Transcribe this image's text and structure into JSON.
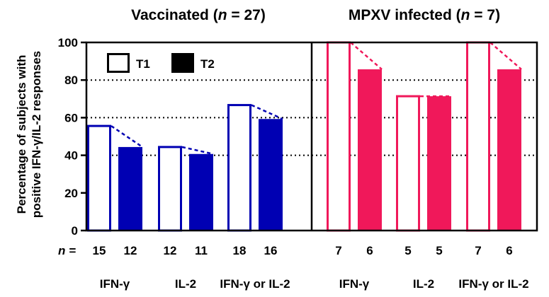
{
  "chart_data": {
    "type": "bar",
    "ylabel_line1": "Percentage of subjects with",
    "ylabel_line2": "positive IFN-γ/IL-2 responses",
    "ylim": [
      0,
      100
    ],
    "yticks": [
      0,
      20,
      40,
      60,
      80,
      100
    ],
    "grid_lines": [
      40,
      60,
      80
    ],
    "n_label": "n =",
    "legend": [
      {
        "name": "T1",
        "style": "open"
      },
      {
        "name": "T2",
        "style": "filled"
      }
    ],
    "panels": [
      {
        "title_pre": "Vaccinated (",
        "title_n": "n",
        "title_post": " = 27)",
        "color": "#0000b3",
        "categories": [
          "IFN-γ",
          "IL-2",
          "IFN-γ or IL-2"
        ],
        "series": [
          {
            "name": "T1",
            "values": [
              55.6,
              44.4,
              66.7
            ],
            "n": [
              "15",
              "12",
              "18"
            ]
          },
          {
            "name": "T2",
            "values": [
              44.4,
              40.7,
              59.3
            ],
            "n": [
              "12",
              "11",
              "16"
            ]
          }
        ]
      },
      {
        "title_pre": "MPXV infected (",
        "title_n": "n",
        "title_post": " = 7)",
        "color": "#f0185a",
        "categories": [
          "IFN-γ",
          "IL-2",
          "IFN-γ or IL-2"
        ],
        "series": [
          {
            "name": "T1",
            "values": [
              100,
              71.4,
              100
            ],
            "n": [
              "7",
              "5",
              "7"
            ]
          },
          {
            "name": "T2",
            "values": [
              85.7,
              71.4,
              85.7
            ],
            "n": [
              "6",
              "5",
              "6"
            ]
          }
        ]
      }
    ]
  }
}
